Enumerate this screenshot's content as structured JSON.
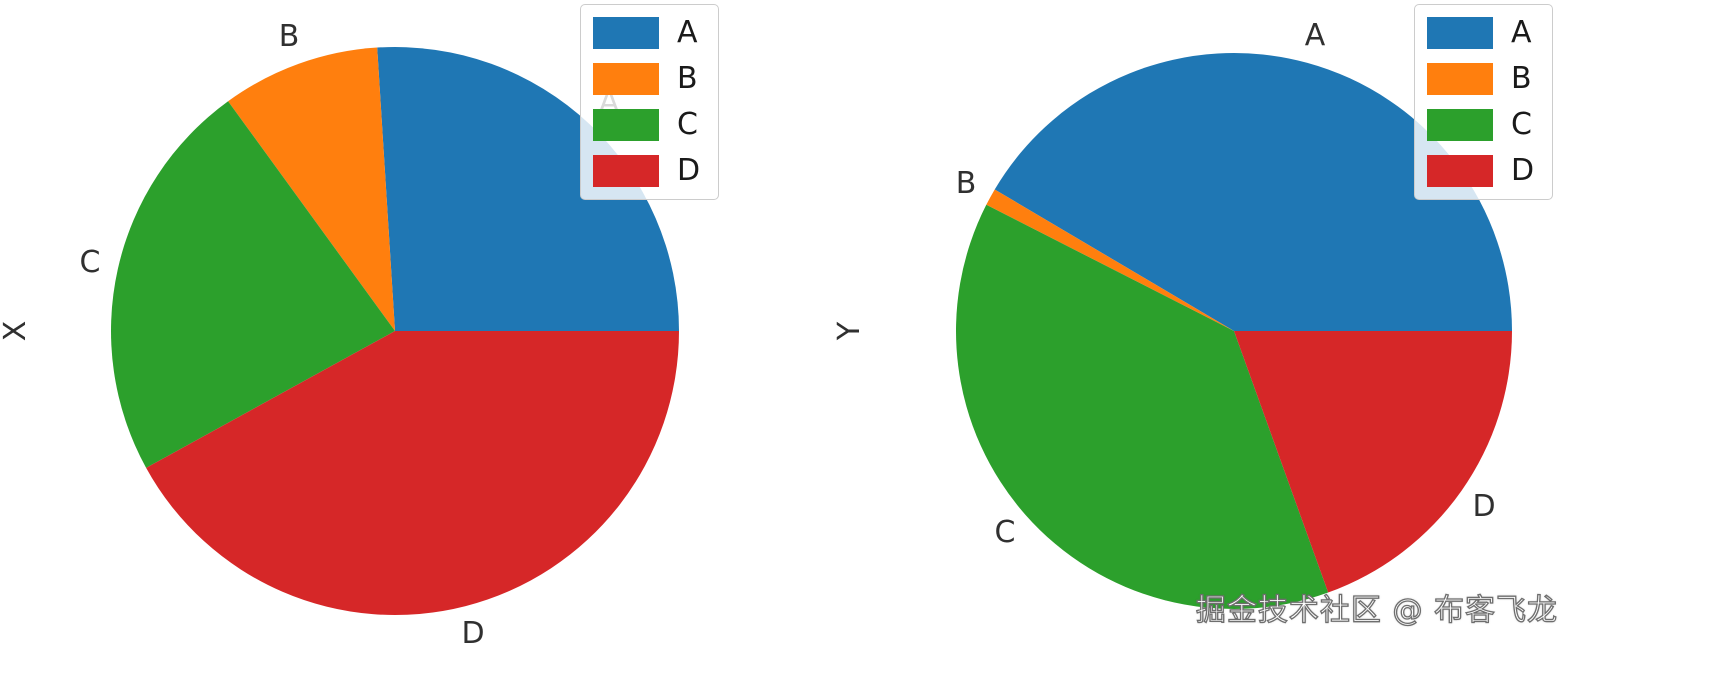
{
  "watermark": "掘金技术社区 @ 布客飞龙",
  "palette": {
    "A": "#1f77b4",
    "B": "#ff7f0e",
    "C": "#2ca02c",
    "D": "#d62728"
  },
  "chart_data": [
    {
      "type": "pie",
      "ylabel": "X",
      "labels": [
        "A",
        "B",
        "C",
        "D"
      ],
      "values": [
        0.26,
        0.09,
        0.23,
        0.42
      ],
      "colors": [
        "#1f77b4",
        "#ff7f0e",
        "#2ca02c",
        "#d62728"
      ],
      "start_angle": 0,
      "direction": "counterclockwise",
      "grid": false,
      "legend": {
        "position": "upper right",
        "entries": [
          "A",
          "B",
          "C",
          "D"
        ]
      }
    },
    {
      "type": "pie",
      "ylabel": "Y",
      "labels": [
        "A",
        "B",
        "C",
        "D"
      ],
      "values": [
        0.415,
        0.01,
        0.38,
        0.195
      ],
      "colors": [
        "#1f77b4",
        "#ff7f0e",
        "#2ca02c",
        "#d62728"
      ],
      "start_angle": 0,
      "direction": "counterclockwise",
      "grid": false,
      "legend": {
        "position": "upper right",
        "entries": [
          "A",
          "B",
          "C",
          "D"
        ]
      }
    }
  ]
}
